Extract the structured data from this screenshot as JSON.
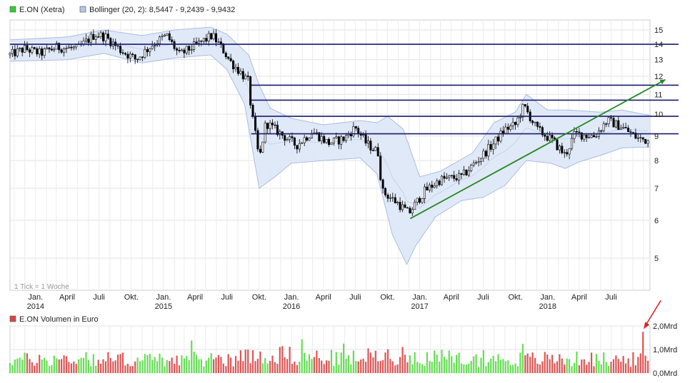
{
  "chart_data": [
    {
      "type": "candlestick",
      "legend": [
        {
          "name": "E.ON (Xetra)",
          "color": "#33cc33"
        },
        {
          "name": "Bollinger (20, 2): 8,5447 - 9,2439 - 9,9432",
          "color": "#b3c6e6"
        }
      ],
      "y_scale": "log",
      "ylim": [
        4.6,
        16.0
      ],
      "y_ticks": [
        "15",
        "14",
        "13",
        "12",
        "11",
        "10",
        "9",
        "8",
        "7",
        "6",
        "5"
      ],
      "x_range": [
        "2013-10-20",
        "2018-10-20"
      ],
      "x_ticks": [
        {
          "label": "Jan.",
          "year": "2014",
          "date": "2014-01-01"
        },
        {
          "label": "April",
          "year": "",
          "date": "2014-04-01"
        },
        {
          "label": "Juli",
          "year": "",
          "date": "2014-07-01"
        },
        {
          "label": "Okt.",
          "year": "",
          "date": "2014-10-01"
        },
        {
          "label": "Jan.",
          "year": "2015",
          "date": "2015-01-01"
        },
        {
          "label": "April",
          "year": "",
          "date": "2015-04-01"
        },
        {
          "label": "Juli",
          "year": "",
          "date": "2015-07-01"
        },
        {
          "label": "Okt.",
          "year": "",
          "date": "2015-10-01"
        },
        {
          "label": "Jan.",
          "year": "2016",
          "date": "2016-01-01"
        },
        {
          "label": "April",
          "year": "",
          "date": "2016-04-01"
        },
        {
          "label": "Juli",
          "year": "",
          "date": "2016-07-01"
        },
        {
          "label": "Okt.",
          "year": "",
          "date": "2016-10-01"
        },
        {
          "label": "Jan.",
          "year": "2017",
          "date": "2017-01-01"
        },
        {
          "label": "April",
          "year": "",
          "date": "2017-04-01"
        },
        {
          "label": "Juli",
          "year": "",
          "date": "2017-07-01"
        },
        {
          "label": "Okt.",
          "year": "",
          "date": "2017-10-01"
        },
        {
          "label": "Jan.",
          "year": "2018",
          "date": "2018-01-01"
        },
        {
          "label": "April",
          "year": "",
          "date": "2018-04-01"
        },
        {
          "label": "Juli",
          "year": "",
          "date": "2018-07-01"
        }
      ],
      "price_path": [
        [
          "2013-10-20",
          13.3
        ],
        [
          "2013-12-01",
          13.7
        ],
        [
          "2014-01-15",
          13.4
        ],
        [
          "2014-03-01",
          13.8
        ],
        [
          "2014-05-01",
          13.7
        ],
        [
          "2014-06-20",
          14.7
        ],
        [
          "2014-07-20",
          14.5
        ],
        [
          "2014-09-01",
          13.6
        ],
        [
          "2014-10-15",
          13.0
        ],
        [
          "2014-12-01",
          14.0
        ],
        [
          "2015-01-10",
          14.6
        ],
        [
          "2015-02-15",
          13.3
        ],
        [
          "2015-04-01",
          13.9
        ],
        [
          "2015-05-20",
          14.6
        ],
        [
          "2015-06-15",
          13.8
        ],
        [
          "2015-07-10",
          12.9
        ],
        [
          "2015-08-01",
          12.4
        ],
        [
          "2015-08-31",
          11.7
        ],
        [
          "2015-09-08",
          10.2
        ],
        [
          "2015-10-01",
          8.0
        ],
        [
          "2015-10-20",
          9.6
        ],
        [
          "2015-12-01",
          9.1
        ],
        [
          "2016-01-15",
          8.6
        ],
        [
          "2016-03-01",
          9.2
        ],
        [
          "2016-04-15",
          8.7
        ],
        [
          "2016-06-01",
          8.9
        ],
        [
          "2016-07-01",
          9.4
        ],
        [
          "2016-08-01",
          8.7
        ],
        [
          "2016-09-05",
          8.3
        ],
        [
          "2016-09-15",
          6.9
        ],
        [
          "2016-11-01",
          6.5
        ],
        [
          "2016-12-01",
          6.2
        ],
        [
          "2017-01-15",
          6.9
        ],
        [
          "2017-03-01",
          7.3
        ],
        [
          "2017-05-01",
          7.4
        ],
        [
          "2017-06-15",
          8.0
        ],
        [
          "2017-08-01",
          8.7
        ],
        [
          "2017-09-01",
          9.3
        ],
        [
          "2017-10-01",
          9.5
        ],
        [
          "2017-10-25",
          10.4
        ],
        [
          "2017-12-01",
          9.3
        ],
        [
          "2018-01-15",
          8.8
        ],
        [
          "2018-02-20",
          8.2
        ],
        [
          "2018-03-20",
          9.1
        ],
        [
          "2018-05-15",
          9.0
        ],
        [
          "2018-06-20",
          9.7
        ],
        [
          "2018-08-01",
          9.4
        ],
        [
          "2018-09-15",
          8.9
        ],
        [
          "2018-10-20",
          8.8
        ]
      ],
      "bollinger_upper": [
        [
          "2013-10-20",
          14.3
        ],
        [
          "2014-04-01",
          14.5
        ],
        [
          "2014-07-15",
          15.0
        ],
        [
          "2014-11-01",
          14.6
        ],
        [
          "2015-02-01",
          15.0
        ],
        [
          "2015-05-15",
          15.2
        ],
        [
          "2015-07-01",
          14.7
        ],
        [
          "2015-09-01",
          13.3
        ],
        [
          "2015-10-01",
          11.5
        ],
        [
          "2015-11-01",
          10.3
        ],
        [
          "2016-01-01",
          9.8
        ],
        [
          "2016-04-01",
          9.5
        ],
        [
          "2016-07-15",
          9.7
        ],
        [
          "2016-09-01",
          9.6
        ],
        [
          "2016-10-01",
          9.9
        ],
        [
          "2016-11-15",
          9.3
        ],
        [
          "2017-01-01",
          7.4
        ],
        [
          "2017-03-01",
          7.6
        ],
        [
          "2017-06-01",
          8.3
        ],
        [
          "2017-08-01",
          9.6
        ],
        [
          "2017-10-01",
          10.1
        ],
        [
          "2017-11-01",
          11.0
        ],
        [
          "2018-01-01",
          10.2
        ],
        [
          "2018-03-01",
          10.2
        ],
        [
          "2018-06-01",
          10.1
        ],
        [
          "2018-08-01",
          10.2
        ],
        [
          "2018-10-20",
          9.94
        ]
      ],
      "bollinger_lower": [
        [
          "2013-10-20",
          12.9
        ],
        [
          "2014-04-01",
          13.0
        ],
        [
          "2014-07-15",
          13.4
        ],
        [
          "2014-11-01",
          12.8
        ],
        [
          "2015-02-01",
          13.1
        ],
        [
          "2015-05-15",
          13.3
        ],
        [
          "2015-07-01",
          12.4
        ],
        [
          "2015-08-20",
          10.5
        ],
        [
          "2015-10-01",
          7.0
        ],
        [
          "2015-11-15",
          7.4
        ],
        [
          "2016-01-01",
          7.9
        ],
        [
          "2016-04-01",
          8.0
        ],
        [
          "2016-07-15",
          8.1
        ],
        [
          "2016-09-01",
          7.5
        ],
        [
          "2016-10-15",
          5.6
        ],
        [
          "2016-11-25",
          4.85
        ],
        [
          "2016-12-20",
          5.3
        ],
        [
          "2017-02-15",
          6.1
        ],
        [
          "2017-05-01",
          6.6
        ],
        [
          "2017-07-01",
          6.7
        ],
        [
          "2017-09-01",
          7.1
        ],
        [
          "2017-11-01",
          8.0
        ],
        [
          "2018-01-10",
          7.9
        ],
        [
          "2018-02-20",
          7.7
        ],
        [
          "2018-04-01",
          7.95
        ],
        [
          "2018-06-01",
          8.2
        ],
        [
          "2018-08-01",
          8.5
        ],
        [
          "2018-10-20",
          8.54
        ]
      ],
      "horizontal_lines": [
        14.0,
        11.5,
        10.7,
        9.9,
        9.1
      ],
      "horizontal_lines_start": [
        "2013-10-20",
        "2015-09-08",
        "2015-09-08",
        "2015-09-08",
        "2015-09-08"
      ],
      "trendline": {
        "from": [
          "2016-12-05",
          6.05
        ],
        "to": [
          "2018-10-15",
          11.65
        ],
        "color": "#228822"
      },
      "annotation": "1 Tick = 1 Woche"
    },
    {
      "type": "bar",
      "legend": [
        {
          "name": "E.ON Volumen in Euro",
          "color": "#dd4444"
        }
      ],
      "y_ticks": [
        "2,0Mrd",
        "1,0Mrd",
        "0,0Mrd"
      ],
      "ylim": [
        0,
        2.0
      ],
      "unit": "Mrd",
      "weeks": 260,
      "volume_profile": [
        [
          "2013-10-20",
          0.7
        ],
        [
          "2014-06-01",
          0.75
        ],
        [
          "2015-01-01",
          0.7
        ],
        [
          "2015-08-01",
          0.8
        ],
        [
          "2015-10-01",
          1.0
        ],
        [
          "2016-06-01",
          0.75
        ],
        [
          "2016-10-01",
          0.95
        ],
        [
          "2017-06-01",
          0.7
        ],
        [
          "2018-01-01",
          0.75
        ],
        [
          "2018-10-20",
          0.7
        ]
      ],
      "spike": {
        "date": "2018-09-30",
        "value": 1.75,
        "marker_color": "#dd2222"
      }
    }
  ]
}
